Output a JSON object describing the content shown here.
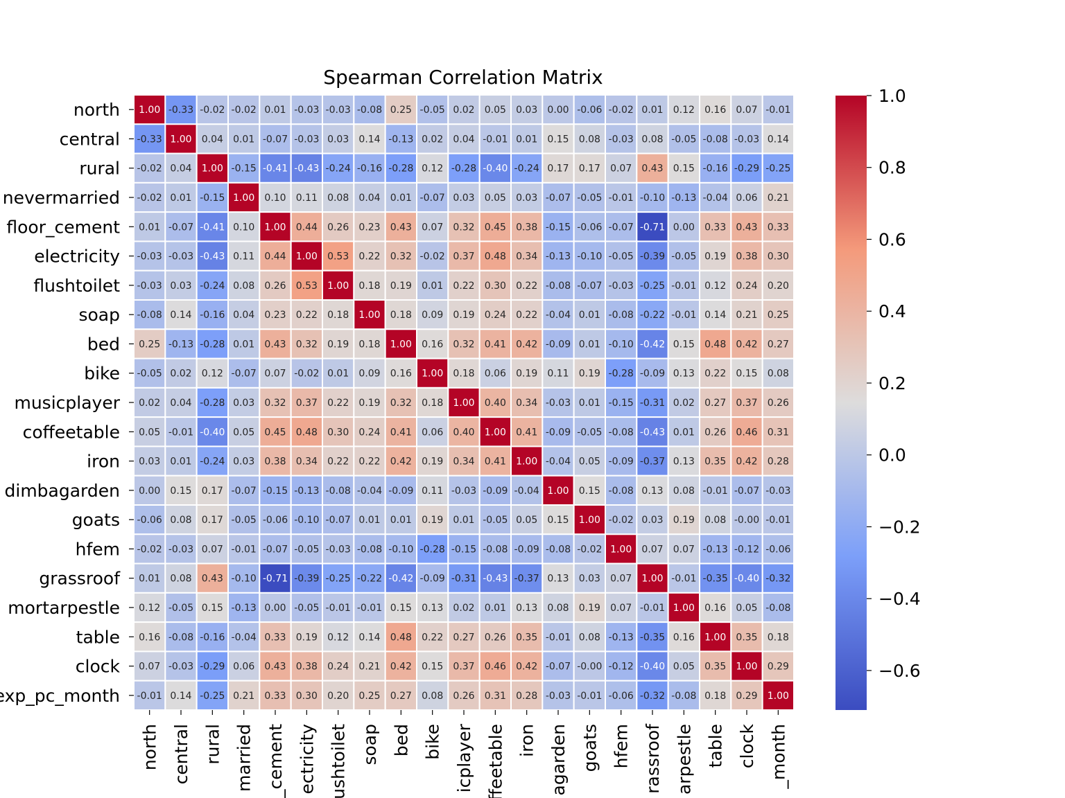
{
  "chart_data": {
    "type": "heatmap",
    "title": "Spearman Correlation Matrix",
    "colormap": "coolwarm",
    "value_format": "2 decimals",
    "row_labels": [
      "north",
      "central",
      "rural",
      "nevermarried",
      "floor_cement",
      "electricity",
      "flushtoilet",
      "soap",
      "bed",
      "bike",
      "musicplayer",
      "coffeetable",
      "iron",
      "dimbagarden",
      "goats",
      "hfem",
      "grassroof",
      "mortarpestle",
      "table",
      "clock",
      "exp_pc_month"
    ],
    "col_labels": [
      "north",
      "central",
      "rural",
      "married",
      "_cement",
      "ectricity",
      "ushtoilet",
      "soap",
      "bed",
      "bike",
      "icplayer",
      "ffeetable",
      "iron",
      "agarden",
      "goats",
      "hfem",
      "rassroof",
      "arpestle",
      "table",
      "clock",
      "_month"
    ],
    "values": [
      [
        1.0,
        -0.33,
        -0.02,
        -0.02,
        0.01,
        -0.03,
        -0.03,
        -0.08,
        0.25,
        -0.05,
        0.02,
        0.05,
        0.03,
        0.0,
        -0.06,
        -0.02,
        0.01,
        0.12,
        0.16,
        0.07,
        -0.01
      ],
      [
        -0.33,
        1.0,
        0.04,
        0.01,
        -0.07,
        -0.03,
        0.03,
        0.14,
        -0.13,
        0.02,
        0.04,
        -0.01,
        0.01,
        0.15,
        0.08,
        -0.03,
        0.08,
        -0.05,
        -0.08,
        -0.03,
        0.14
      ],
      [
        -0.02,
        0.04,
        1.0,
        -0.15,
        -0.41,
        -0.43,
        -0.24,
        -0.16,
        -0.28,
        0.12,
        -0.28,
        -0.4,
        -0.24,
        0.17,
        0.17,
        0.07,
        0.43,
        0.15,
        -0.16,
        -0.29,
        -0.25
      ],
      [
        -0.02,
        0.01,
        -0.15,
        1.0,
        0.1,
        0.11,
        0.08,
        0.04,
        0.01,
        -0.07,
        0.03,
        0.05,
        0.03,
        -0.07,
        -0.05,
        -0.01,
        -0.1,
        -0.13,
        -0.04,
        0.06,
        0.21
      ],
      [
        0.01,
        -0.07,
        -0.41,
        0.1,
        1.0,
        0.44,
        0.26,
        0.23,
        0.43,
        0.07,
        0.32,
        0.45,
        0.38,
        -0.15,
        -0.06,
        -0.07,
        -0.71,
        0.0,
        0.33,
        0.43,
        0.33
      ],
      [
        -0.03,
        -0.03,
        -0.43,
        0.11,
        0.44,
        1.0,
        0.53,
        0.22,
        0.32,
        -0.02,
        0.37,
        0.48,
        0.34,
        -0.13,
        -0.1,
        -0.05,
        -0.39,
        -0.05,
        0.19,
        0.38,
        0.3
      ],
      [
        -0.03,
        0.03,
        -0.24,
        0.08,
        0.26,
        0.53,
        1.0,
        0.18,
        0.19,
        0.01,
        0.22,
        0.3,
        0.22,
        -0.08,
        -0.07,
        -0.03,
        -0.25,
        -0.01,
        0.12,
        0.24,
        0.2
      ],
      [
        -0.08,
        0.14,
        -0.16,
        0.04,
        0.23,
        0.22,
        0.18,
        1.0,
        0.18,
        0.09,
        0.19,
        0.24,
        0.22,
        -0.04,
        0.01,
        -0.08,
        -0.22,
        -0.01,
        0.14,
        0.21,
        0.25
      ],
      [
        0.25,
        -0.13,
        -0.28,
        0.01,
        0.43,
        0.32,
        0.19,
        0.18,
        1.0,
        0.16,
        0.32,
        0.41,
        0.42,
        -0.09,
        0.01,
        -0.1,
        -0.42,
        0.15,
        0.48,
        0.42,
        0.27
      ],
      [
        -0.05,
        0.02,
        0.12,
        -0.07,
        0.07,
        -0.02,
        0.01,
        0.09,
        0.16,
        1.0,
        0.18,
        0.06,
        0.19,
        0.11,
        0.19,
        -0.28,
        -0.09,
        0.13,
        0.22,
        0.15,
        0.08
      ],
      [
        0.02,
        0.04,
        -0.28,
        0.03,
        0.32,
        0.37,
        0.22,
        0.19,
        0.32,
        0.18,
        1.0,
        0.4,
        0.34,
        -0.03,
        0.01,
        -0.15,
        -0.31,
        0.02,
        0.27,
        0.37,
        0.26
      ],
      [
        0.05,
        -0.01,
        -0.4,
        0.05,
        0.45,
        0.48,
        0.3,
        0.24,
        0.41,
        0.06,
        0.4,
        1.0,
        0.41,
        -0.09,
        -0.05,
        -0.08,
        -0.43,
        0.01,
        0.26,
        0.46,
        0.31
      ],
      [
        0.03,
        0.01,
        -0.24,
        0.03,
        0.38,
        0.34,
        0.22,
        0.22,
        0.42,
        0.19,
        0.34,
        0.41,
        1.0,
        -0.04,
        0.05,
        -0.09,
        -0.37,
        0.13,
        0.35,
        0.42,
        0.28
      ],
      [
        0.0,
        0.15,
        0.17,
        -0.07,
        -0.15,
        -0.13,
        -0.08,
        -0.04,
        -0.09,
        0.11,
        -0.03,
        -0.09,
        -0.04,
        1.0,
        0.15,
        -0.08,
        0.13,
        0.08,
        -0.01,
        -0.07,
        -0.03
      ],
      [
        -0.06,
        0.08,
        0.17,
        -0.05,
        -0.06,
        -0.1,
        -0.07,
        0.01,
        0.01,
        0.19,
        0.01,
        -0.05,
        0.05,
        0.15,
        1.0,
        -0.02,
        0.03,
        0.19,
        0.08,
        -0.0,
        -0.01
      ],
      [
        -0.02,
        -0.03,
        0.07,
        -0.01,
        -0.07,
        -0.05,
        -0.03,
        -0.08,
        -0.1,
        -0.28,
        -0.15,
        -0.08,
        -0.09,
        -0.08,
        -0.02,
        1.0,
        0.07,
        0.07,
        -0.13,
        -0.12,
        -0.06
      ],
      [
        0.01,
        0.08,
        0.43,
        -0.1,
        -0.71,
        -0.39,
        -0.25,
        -0.22,
        -0.42,
        -0.09,
        -0.31,
        -0.43,
        -0.37,
        0.13,
        0.03,
        0.07,
        1.0,
        -0.01,
        -0.35,
        -0.4,
        -0.32
      ],
      [
        0.12,
        -0.05,
        0.15,
        -0.13,
        0.0,
        -0.05,
        -0.01,
        -0.01,
        0.15,
        0.13,
        0.02,
        0.01,
        0.13,
        0.08,
        0.19,
        0.07,
        -0.01,
        1.0,
        0.16,
        0.05,
        -0.08
      ],
      [
        0.16,
        -0.08,
        -0.16,
        -0.04,
        0.33,
        0.19,
        0.12,
        0.14,
        0.48,
        0.22,
        0.27,
        0.26,
        0.35,
        -0.01,
        0.08,
        -0.13,
        -0.35,
        0.16,
        1.0,
        0.35,
        0.18
      ],
      [
        0.07,
        -0.03,
        -0.29,
        0.06,
        0.43,
        0.38,
        0.24,
        0.21,
        0.42,
        0.15,
        0.37,
        0.46,
        0.42,
        -0.07,
        -0.0,
        -0.12,
        -0.4,
        0.05,
        0.35,
        1.0,
        0.29
      ],
      [
        -0.01,
        0.14,
        -0.25,
        0.21,
        0.33,
        0.3,
        0.2,
        0.25,
        0.27,
        0.08,
        0.26,
        0.31,
        0.28,
        -0.03,
        -0.01,
        -0.06,
        -0.32,
        -0.08,
        0.18,
        0.29,
        1.0
      ]
    ],
    "colorbar": {
      "vmin": -0.71,
      "vmax": 1.0,
      "ticks": [
        1.0,
        0.8,
        0.6,
        0.4,
        0.2,
        0.0,
        -0.2,
        -0.4,
        -0.6
      ],
      "tick_labels": [
        "1.0",
        "0.8",
        "0.6",
        "0.4",
        "0.2",
        "0.0",
        "−0.2",
        "−0.4",
        "−0.6"
      ]
    }
  }
}
